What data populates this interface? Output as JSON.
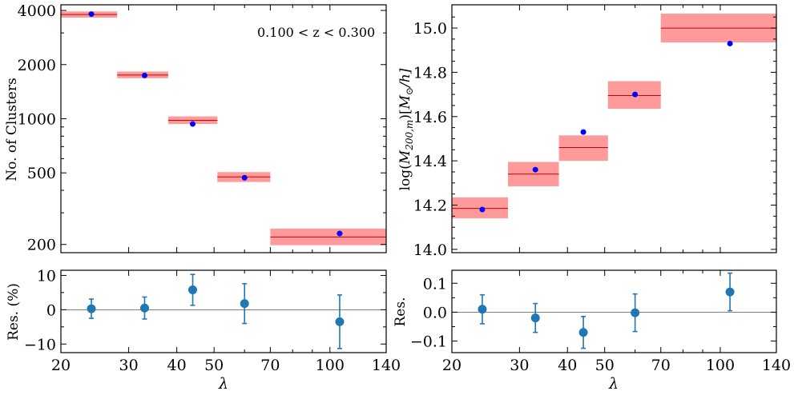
{
  "chart_data": [
    {
      "type": "scatter",
      "panel": "top-left",
      "title": "",
      "annotation": "0.100 < z < 0.300",
      "xlabel": "",
      "ylabel": "No. of Clusters",
      "xscale": "log",
      "yscale": "log",
      "xlim": [
        20,
        140
      ],
      "ylim": [
        180,
        4300
      ],
      "yticks": [
        200,
        500,
        1000,
        2000,
        4000
      ],
      "yticklabels": [
        "200",
        "500",
        "1000",
        "2000",
        "4000"
      ],
      "model_bins": [
        {
          "x0": 20,
          "x1": 28,
          "y": 3800,
          "ylo": 3650,
          "yhi": 3950
        },
        {
          "x0": 28,
          "x1": 38,
          "y": 1750,
          "ylo": 1680,
          "yhi": 1830
        },
        {
          "x0": 38,
          "x1": 51,
          "y": 980,
          "ylo": 935,
          "yhi": 1030
        },
        {
          "x0": 51,
          "x1": 70,
          "y": 475,
          "ylo": 445,
          "yhi": 505
        },
        {
          "x0": 70,
          "x1": 140,
          "y": 220,
          "ylo": 198,
          "yhi": 245
        }
      ],
      "observed": [
        {
          "x": 24,
          "y": 3820
        },
        {
          "x": 33,
          "y": 1740
        },
        {
          "x": 44,
          "y": 935
        },
        {
          "x": 60,
          "y": 470
        },
        {
          "x": 106,
          "y": 230
        }
      ]
    },
    {
      "type": "scatter",
      "panel": "top-right",
      "title": "",
      "xlabel": "",
      "ylabel": "log(M200,m)[M⊙/h]",
      "ylabel_parts": {
        "a": "log(",
        "b": "M",
        "c": "200,m",
        "d": ")[",
        "e": "M",
        "f": "⊙",
        "g": "/h]"
      },
      "xscale": "log",
      "yscale": "linear",
      "xlim": [
        20,
        140
      ],
      "ylim": [
        13.985,
        15.105
      ],
      "yticks": [
        14.0,
        14.2,
        14.4,
        14.6,
        14.8,
        15.0
      ],
      "yticklabels": [
        "14.0",
        "14.2",
        "14.4",
        "14.6",
        "14.8",
        "15.0"
      ],
      "model_bins": [
        {
          "x0": 20,
          "x1": 28,
          "y": 14.185,
          "ylo": 14.14,
          "yhi": 14.235
        },
        {
          "x0": 28,
          "x1": 38,
          "y": 14.34,
          "ylo": 14.285,
          "yhi": 14.395
        },
        {
          "x0": 38,
          "x1": 51,
          "y": 14.46,
          "ylo": 14.4,
          "yhi": 14.515
        },
        {
          "x0": 51,
          "x1": 70,
          "y": 14.695,
          "ylo": 14.635,
          "yhi": 14.76
        },
        {
          "x0": 70,
          "x1": 140,
          "y": 15.0,
          "ylo": 14.935,
          "yhi": 15.065
        }
      ],
      "observed": [
        {
          "x": 24,
          "y": 14.18
        },
        {
          "x": 33,
          "y": 14.36
        },
        {
          "x": 44,
          "y": 14.53
        },
        {
          "x": 60,
          "y": 14.7
        },
        {
          "x": 106,
          "y": 14.93
        }
      ]
    },
    {
      "type": "scatter",
      "panel": "bottom-left",
      "xlabel": "λ",
      "ylabel": "Res. (%)",
      "xscale": "log",
      "xlim": [
        20,
        140
      ],
      "ylim": [
        -12.5,
        11.5
      ],
      "yticks": [
        -10,
        0,
        10
      ],
      "yticklabels": [
        "−10",
        "0",
        "10"
      ],
      "xticks": [
        20,
        30,
        40,
        50,
        70,
        100,
        140
      ],
      "xticklabels": [
        "20",
        "30",
        "40",
        "50",
        "70",
        "100",
        "140"
      ],
      "reference_line": 0,
      "points": [
        {
          "x": 24,
          "y": 0.3,
          "err": 2.8
        },
        {
          "x": 33,
          "y": 0.5,
          "err": 3.2
        },
        {
          "x": 44,
          "y": 5.8,
          "err": 4.5
        },
        {
          "x": 60,
          "y": 1.8,
          "err": 5.8
        },
        {
          "x": 106,
          "y": -3.5,
          "err": 7.8
        }
      ]
    },
    {
      "type": "scatter",
      "panel": "bottom-right",
      "xlabel": "λ",
      "ylabel": "Res.",
      "xscale": "log",
      "xlim": [
        20,
        140
      ],
      "ylim": [
        -0.14,
        0.145
      ],
      "yticks": [
        -0.1,
        0.0,
        0.1
      ],
      "yticklabels": [
        "−0.1",
        "0.0",
        "0.1"
      ],
      "xticks": [
        20,
        30,
        40,
        50,
        70,
        100,
        140
      ],
      "xticklabels": [
        "20",
        "30",
        "40",
        "50",
        "70",
        "100",
        "140"
      ],
      "reference_line": 0,
      "points": [
        {
          "x": 24,
          "y": 0.01,
          "err": 0.05
        },
        {
          "x": 33,
          "y": -0.02,
          "err": 0.05
        },
        {
          "x": 44,
          "y": -0.07,
          "err": 0.055
        },
        {
          "x": 60,
          "y": -0.002,
          "err": 0.065
        },
        {
          "x": 106,
          "y": 0.07,
          "err": 0.065
        }
      ]
    }
  ],
  "colors": {
    "band_fill": "#ff9a9a",
    "model_line": "#cc0000",
    "observed_point": "#0000ff",
    "residual_point": "#1f77b4",
    "reference_line": "#555555"
  }
}
